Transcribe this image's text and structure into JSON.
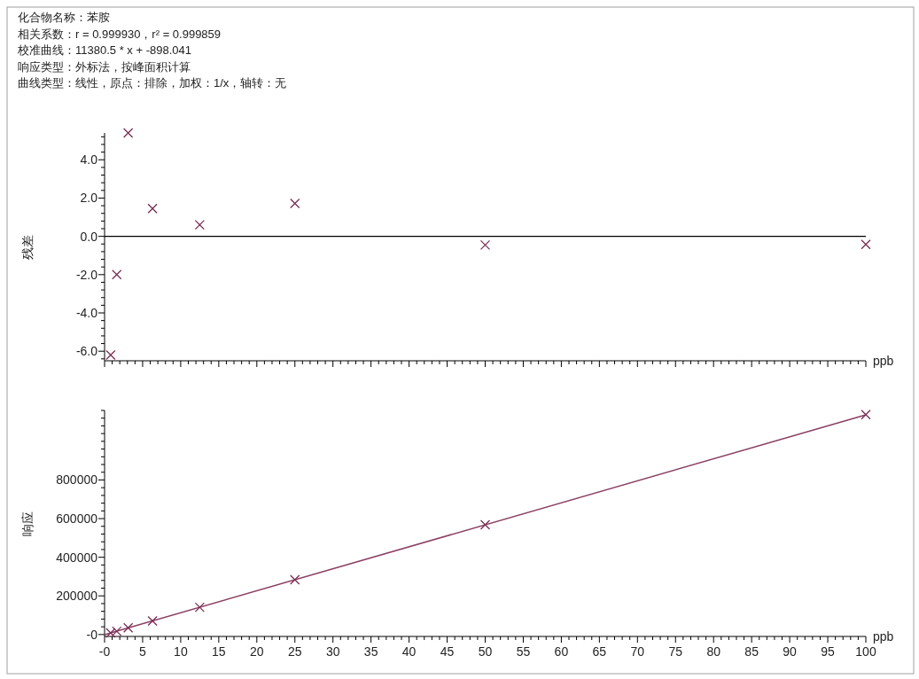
{
  "chart_data": [
    {
      "type": "scatter",
      "annotations": [
        "化合物名称：苯胺",
        "相关系数：r = 0.999930，r² = 0.999859",
        "校准曲线：11380.5 * x + -898.041",
        "响应类型：外标法，按峰面积计算",
        "曲线类型：线性，原点：排除，加权：1/x，轴转：无"
      ],
      "xlabel": "ppb",
      "ylabel": "残差",
      "tick_labels": "y",
      "grid": false,
      "marker": "cross",
      "xlim": [
        0,
        100
      ],
      "ylim": [
        -6.5,
        5.4
      ],
      "xticks": [
        0,
        {
          "value": 1,
          "label": null
        },
        {
          "value": 2,
          "label": null
        },
        {
          "value": 3,
          "label": null
        },
        {
          "value": 4,
          "label": null
        },
        5,
        {
          "value": 6,
          "label": null
        },
        {
          "value": 7,
          "label": null
        },
        {
          "value": 8,
          "label": null
        },
        {
          "value": 9,
          "label": null
        },
        10,
        {
          "value": 11,
          "label": null
        },
        {
          "value": 12,
          "label": null
        },
        {
          "value": 13,
          "label": null
        },
        {
          "value": 14,
          "label": null
        },
        15,
        {
          "value": 16,
          "label": null
        },
        {
          "value": 17,
          "label": null
        },
        {
          "value": 18,
          "label": null
        },
        {
          "value": 19,
          "label": null
        },
        20,
        {
          "value": 21,
          "label": null
        },
        {
          "value": 22,
          "label": null
        },
        {
          "value": 23,
          "label": null
        },
        {
          "value": 24,
          "label": null
        },
        25,
        {
          "value": 26,
          "label": null
        },
        {
          "value": 27,
          "label": null
        },
        {
          "value": 28,
          "label": null
        },
        {
          "value": 29,
          "label": null
        },
        30,
        {
          "value": 31,
          "label": null
        },
        {
          "value": 32,
          "label": null
        },
        {
          "value": 33,
          "label": null
        },
        {
          "value": 34,
          "label": null
        },
        35,
        {
          "value": 36,
          "label": null
        },
        {
          "value": 37,
          "label": null
        },
        {
          "value": 38,
          "label": null
        },
        {
          "value": 39,
          "label": null
        },
        40,
        {
          "value": 41,
          "label": null
        },
        {
          "value": 42,
          "label": null
        },
        {
          "value": 43,
          "label": null
        },
        {
          "value": 44,
          "label": null
        },
        45,
        {
          "value": 46,
          "label": null
        },
        {
          "value": 47,
          "label": null
        },
        {
          "value": 48,
          "label": null
        },
        {
          "value": 49,
          "label": null
        },
        50,
        {
          "value": 51,
          "label": null
        },
        {
          "value": 52,
          "label": null
        },
        {
          "value": 53,
          "label": null
        },
        {
          "value": 54,
          "label": null
        },
        55,
        {
          "value": 56,
          "label": null
        },
        {
          "value": 57,
          "label": null
        },
        {
          "value": 58,
          "label": null
        },
        {
          "value": 59,
          "label": null
        },
        60,
        {
          "value": 61,
          "label": null
        },
        {
          "value": 62,
          "label": null
        },
        {
          "value": 63,
          "label": null
        },
        {
          "value": 64,
          "label": null
        },
        65,
        {
          "value": 66,
          "label": null
        },
        {
          "value": 67,
          "label": null
        },
        {
          "value": 68,
          "label": null
        },
        {
          "value": 69,
          "label": null
        },
        70,
        {
          "value": 71,
          "label": null
        },
        {
          "value": 72,
          "label": null
        },
        {
          "value": 73,
          "label": null
        },
        {
          "value": 74,
          "label": null
        },
        75,
        {
          "value": 76,
          "label": null
        },
        {
          "value": 77,
          "label": null
        },
        {
          "value": 78,
          "label": null
        },
        {
          "value": 79,
          "label": null
        },
        80,
        {
          "value": 81,
          "label": null
        },
        {
          "value": 82,
          "label": null
        },
        {
          "value": 83,
          "label": null
        },
        {
          "value": 84,
          "label": null
        },
        85,
        {
          "value": 86,
          "label": null
        },
        {
          "value": 87,
          "label": null
        },
        {
          "value": 88,
          "label": null
        },
        {
          "value": 89,
          "label": null
        },
        90,
        {
          "value": 91,
          "label": null
        },
        {
          "value": 92,
          "label": null
        },
        {
          "value": 93,
          "label": null
        },
        {
          "value": 94,
          "label": null
        },
        95,
        {
          "value": 96,
          "label": null
        },
        {
          "value": 97,
          "label": null
        },
        {
          "value": 98,
          "label": null
        },
        {
          "value": 99,
          "label": null
        },
        100
      ],
      "yticks": [
        {
          "value": -6.4,
          "label": null
        },
        {
          "value": -6.0,
          "label": "-6.0"
        },
        {
          "value": -5.6,
          "label": null
        },
        {
          "value": -5.2,
          "label": null
        },
        {
          "value": -4.8,
          "label": null
        },
        {
          "value": -4.4,
          "label": null
        },
        {
          "value": -4.0,
          "label": "-4.0"
        },
        {
          "value": -3.6,
          "label": null
        },
        {
          "value": -3.2,
          "label": null
        },
        {
          "value": -2.8,
          "label": null
        },
        {
          "value": -2.4,
          "label": null
        },
        {
          "value": -2.0,
          "label": "-2.0"
        },
        {
          "value": -1.6,
          "label": null
        },
        {
          "value": -1.2,
          "label": null
        },
        {
          "value": -0.8,
          "label": null
        },
        {
          "value": -0.4,
          "label": null
        },
        {
          "value": 0,
          "label": "0.0"
        },
        {
          "value": 0.4,
          "label": null
        },
        {
          "value": 0.8,
          "label": null
        },
        {
          "value": 1.2,
          "label": null
        },
        {
          "value": 1.6,
          "label": null
        },
        {
          "value": 2.0,
          "label": "2.0"
        },
        {
          "value": 2.4,
          "label": null
        },
        {
          "value": 2.8,
          "label": null
        },
        {
          "value": 3.2,
          "label": null
        },
        {
          "value": 3.6,
          "label": null
        },
        {
          "value": 4.0,
          "label": "4.0"
        },
        {
          "value": 4.4,
          "label": null
        },
        {
          "value": 4.8,
          "label": null
        },
        {
          "value": 5.2,
          "label": null
        }
      ],
      "ref_lines": [
        {
          "axis": "y",
          "value": 0,
          "color": "#000000"
        }
      ],
      "x": [
        0.8,
        1.6,
        3.1,
        6.3,
        12.5,
        25,
        50,
        100
      ],
      "series": [
        {
          "type": "scatter",
          "color": "#7a2d55",
          "values": [
            -6.2,
            -2.0,
            5.4,
            1.45,
            0.6,
            1.72,
            -0.45,
            -0.42
          ]
        }
      ]
    },
    {
      "type": "scatter",
      "xlabel": "ppb",
      "ylabel": "响应",
      "grid": false,
      "marker": "cross",
      "xlim": [
        0,
        100
      ],
      "ylim": [
        -10000,
        1160000
      ],
      "xticks": [
        {
          "value": 0,
          "label": "-0"
        },
        {
          "value": 1,
          "label": null
        },
        {
          "value": 2,
          "label": null
        },
        {
          "value": 3,
          "label": null
        },
        {
          "value": 4,
          "label": null
        },
        5,
        {
          "value": 6,
          "label": null
        },
        {
          "value": 7,
          "label": null
        },
        {
          "value": 8,
          "label": null
        },
        {
          "value": 9,
          "label": null
        },
        10,
        {
          "value": 11,
          "label": null
        },
        {
          "value": 12,
          "label": null
        },
        {
          "value": 13,
          "label": null
        },
        {
          "value": 14,
          "label": null
        },
        15,
        {
          "value": 16,
          "label": null
        },
        {
          "value": 17,
          "label": null
        },
        {
          "value": 18,
          "label": null
        },
        {
          "value": 19,
          "label": null
        },
        20,
        {
          "value": 21,
          "label": null
        },
        {
          "value": 22,
          "label": null
        },
        {
          "value": 23,
          "label": null
        },
        {
          "value": 24,
          "label": null
        },
        25,
        {
          "value": 26,
          "label": null
        },
        {
          "value": 27,
          "label": null
        },
        {
          "value": 28,
          "label": null
        },
        {
          "value": 29,
          "label": null
        },
        30,
        {
          "value": 31,
          "label": null
        },
        {
          "value": 32,
          "label": null
        },
        {
          "value": 33,
          "label": null
        },
        {
          "value": 34,
          "label": null
        },
        35,
        {
          "value": 36,
          "label": null
        },
        {
          "value": 37,
          "label": null
        },
        {
          "value": 38,
          "label": null
        },
        {
          "value": 39,
          "label": null
        },
        40,
        {
          "value": 41,
          "label": null
        },
        {
          "value": 42,
          "label": null
        },
        {
          "value": 43,
          "label": null
        },
        {
          "value": 44,
          "label": null
        },
        45,
        {
          "value": 46,
          "label": null
        },
        {
          "value": 47,
          "label": null
        },
        {
          "value": 48,
          "label": null
        },
        {
          "value": 49,
          "label": null
        },
        50,
        {
          "value": 51,
          "label": null
        },
        {
          "value": 52,
          "label": null
        },
        {
          "value": 53,
          "label": null
        },
        {
          "value": 54,
          "label": null
        },
        55,
        {
          "value": 56,
          "label": null
        },
        {
          "value": 57,
          "label": null
        },
        {
          "value": 58,
          "label": null
        },
        {
          "value": 59,
          "label": null
        },
        60,
        {
          "value": 61,
          "label": null
        },
        {
          "value": 62,
          "label": null
        },
        {
          "value": 63,
          "label": null
        },
        {
          "value": 64,
          "label": null
        },
        65,
        {
          "value": 66,
          "label": null
        },
        {
          "value": 67,
          "label": null
        },
        {
          "value": 68,
          "label": null
        },
        {
          "value": 69,
          "label": null
        },
        70,
        {
          "value": 71,
          "label": null
        },
        {
          "value": 72,
          "label": null
        },
        {
          "value": 73,
          "label": null
        },
        {
          "value": 74,
          "label": null
        },
        75,
        {
          "value": 76,
          "label": null
        },
        {
          "value": 77,
          "label": null
        },
        {
          "value": 78,
          "label": null
        },
        {
          "value": 79,
          "label": null
        },
        80,
        {
          "value": 81,
          "label": null
        },
        {
          "value": 82,
          "label": null
        },
        {
          "value": 83,
          "label": null
        },
        {
          "value": 84,
          "label": null
        },
        85,
        {
          "value": 86,
          "label": null
        },
        {
          "value": 87,
          "label": null
        },
        {
          "value": 88,
          "label": null
        },
        {
          "value": 89,
          "label": null
        },
        90,
        {
          "value": 91,
          "label": null
        },
        {
          "value": 92,
          "label": null
        },
        {
          "value": 93,
          "label": null
        },
        {
          "value": 94,
          "label": null
        },
        95,
        {
          "value": 96,
          "label": null
        },
        {
          "value": 97,
          "label": null
        },
        {
          "value": 98,
          "label": null
        },
        {
          "value": 99,
          "label": null
        },
        100
      ],
      "yticks": [
        {
          "value": 0,
          "label": "-0"
        },
        {
          "value": 40000,
          "label": null
        },
        {
          "value": 80000,
          "label": null
        },
        {
          "value": 120000,
          "label": null
        },
        {
          "value": 160000,
          "label": null
        },
        200000,
        {
          "value": 240000,
          "label": null
        },
        {
          "value": 280000,
          "label": null
        },
        {
          "value": 320000,
          "label": null
        },
        {
          "value": 360000,
          "label": null
        },
        400000,
        {
          "value": 440000,
          "label": null
        },
        {
          "value": 480000,
          "label": null
        },
        {
          "value": 520000,
          "label": null
        },
        {
          "value": 560000,
          "label": null
        },
        600000,
        {
          "value": 640000,
          "label": null
        },
        {
          "value": 680000,
          "label": null
        },
        {
          "value": 720000,
          "label": null
        },
        {
          "value": 760000,
          "label": null
        },
        800000,
        {
          "value": 840000,
          "label": null
        },
        {
          "value": 880000,
          "label": null
        },
        {
          "value": 920000,
          "label": null
        },
        {
          "value": 960000,
          "label": null
        },
        {
          "value": 1000000,
          "label": null
        },
        {
          "value": 1040000,
          "label": null
        },
        {
          "value": 1080000,
          "label": null
        },
        {
          "value": 1120000,
          "label": null
        },
        {
          "value": 1160000,
          "label": null
        }
      ],
      "x": [
        0.8,
        1.6,
        3.1,
        6.3,
        12.5,
        25,
        50,
        100
      ],
      "series": [
        {
          "type": "scatter",
          "color": "#7a2d55",
          "values": [
            8000,
            17000,
            35000,
            70000,
            141000,
            284000,
            568000,
            1138000
          ]
        },
        {
          "type": "line",
          "color": "#8a3f63",
          "line_style": "solid",
          "marker": "none",
          "x": [
            0,
            100
          ],
          "values": [
            -1000,
            1137000
          ]
        }
      ]
    }
  ]
}
